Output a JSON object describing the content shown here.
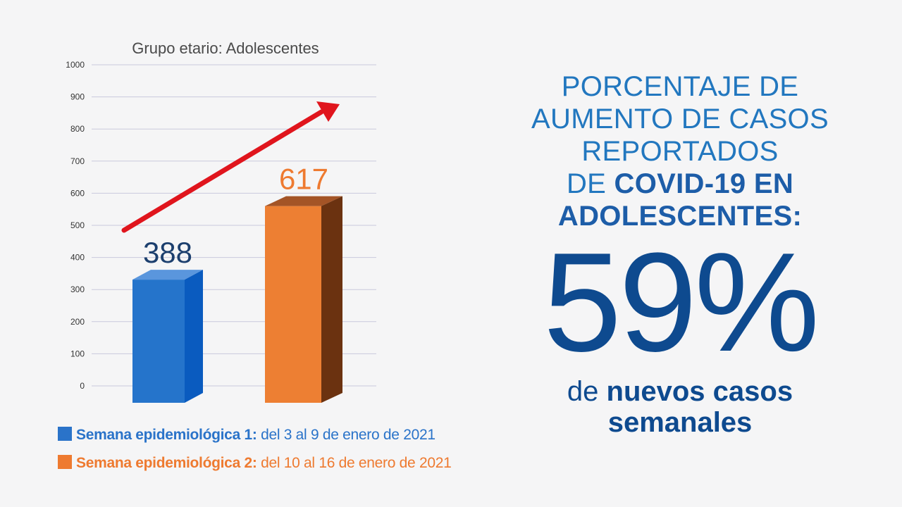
{
  "chart_data": {
    "type": "bar",
    "title": "Grupo etario: Adolescentes",
    "categories": [
      "Semana epidemiológica 1",
      "Semana epidemiológica 2"
    ],
    "values": [
      388,
      617
    ],
    "data_labels": [
      "388",
      "617"
    ],
    "y_ticks": [
      "0",
      "100",
      "200",
      "300",
      "400",
      "500",
      "600",
      "700",
      "800",
      "900",
      "1000"
    ],
    "ylim": [
      0,
      1000
    ],
    "grid": true,
    "colors": {
      "bar1_front": "#2574cb",
      "bar1_top": "#5a96dd",
      "bar1_side": "#0a5bbf",
      "bar2_front": "#ed7f33",
      "bar2_top": "#a45426",
      "bar2_side": "#6b3210",
      "label1": "#1c3f6e",
      "label2": "#ee7a30",
      "arrow": "#e0151d"
    }
  },
  "legend": [
    {
      "bold": "Semana epidemiológica 1:",
      "text": " del 3 al 9 de enero de 2021",
      "color": "#2a73c9"
    },
    {
      "bold": "Semana epidemiológica 2:",
      "text": " del 10 al 16 de enero de 2021",
      "color": "#ee7a30"
    }
  ],
  "headline": {
    "line1": "PORCENTAJE DE",
    "line2": "AUMENTO DE CASOS",
    "line3": "REPORTADOS",
    "line4_prefix": "DE ",
    "line4_strong": "COVID-19 EN",
    "line5_strong": "ADOLESCENTES:"
  },
  "big_percent": "59%",
  "footer": {
    "prefix": "de ",
    "strong1": "nuevos casos",
    "strong2": "semanales"
  }
}
